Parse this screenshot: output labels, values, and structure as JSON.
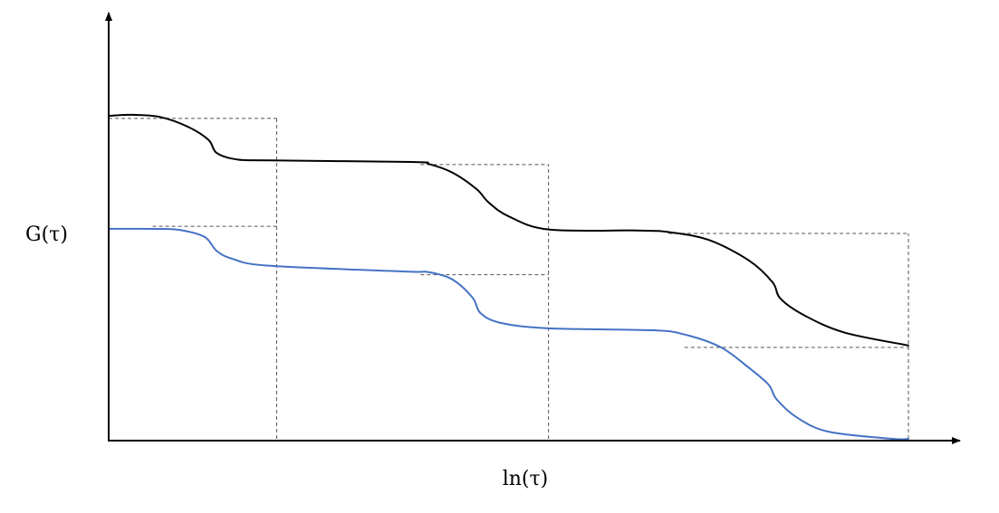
{
  "chart_data": {
    "type": "line",
    "title": "",
    "xlabel": "ln(τ)",
    "ylabel": "G(τ)",
    "xlim": [
      0,
      100
    ],
    "ylim": [
      0,
      100
    ],
    "grid": false,
    "legend": "none",
    "ticks": "none",
    "series": [
      {
        "color": "#000000",
        "x": [
          0,
          3,
          6.5,
          10,
          12.5,
          13.5,
          16,
          20,
          38,
          40,
          43,
          46,
          47.5,
          50,
          55,
          66,
          70,
          75,
          80,
          83,
          84,
          87,
          92,
          100
        ],
        "y": [
          100,
          100.3,
          99.6,
          96.5,
          92.5,
          88.5,
          86.5,
          86.2,
          85.7,
          85.1,
          82.4,
          77.3,
          73.2,
          68.9,
          64.8,
          64.5,
          64,
          61.6,
          55.3,
          48.5,
          43.4,
          38.2,
          32.9,
          28.9
        ]
      },
      {
        "color": "#4472c4",
        "x": [
          0,
          6,
          9,
          12,
          13.5,
          15.5,
          20,
          37,
          40,
          43,
          45.5,
          46.5,
          49,
          55,
          68,
          72,
          76.5,
          80,
          82.5,
          83.5,
          86,
          90,
          98,
          100
        ],
        "y": [
          65,
          65,
          64.6,
          62.5,
          58.2,
          55.7,
          53.6,
          51.8,
          51.6,
          49.3,
          43.7,
          38.9,
          35.9,
          34.2,
          33.6,
          32.3,
          28.4,
          22.1,
          16.8,
          12.3,
          6.7,
          2.2,
          0,
          0
        ]
      }
    ],
    "reference_lines": {
      "color": "#555555",
      "style": "dashed",
      "horizontal": [
        {
          "x": [
            0,
            21
          ],
          "y": 99.2
        },
        {
          "x": [
            39,
            55
          ],
          "y": 84.9
        },
        {
          "x": [
            70,
            100
          ],
          "y": 63.6
        },
        {
          "x": [
            5.5,
            21
          ],
          "y": 65.8
        },
        {
          "x": [
            39,
            55
          ],
          "y": 50.8
        },
        {
          "x": [
            72,
            100
          ],
          "y": 28.3
        }
      ],
      "vertical": [
        {
          "x": 21,
          "y": [
            0,
            99.2
          ]
        },
        {
          "x": 55,
          "y": [
            0,
            84.9
          ]
        },
        {
          "x": 100,
          "y": [
            0,
            63.6
          ]
        }
      ]
    }
  }
}
